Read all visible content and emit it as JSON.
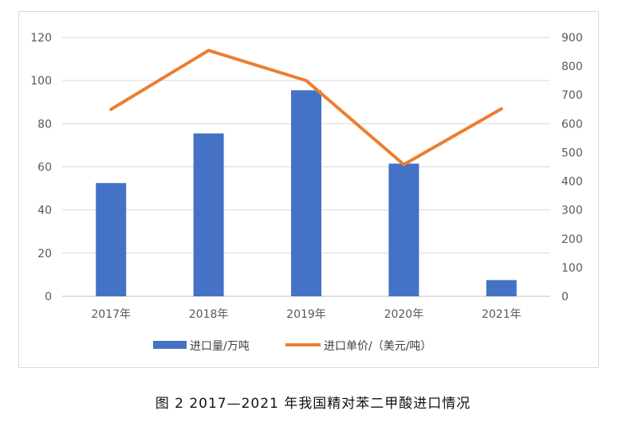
{
  "caption": "图 2  2017—2021 年我国精对苯二甲酸进口情况",
  "chart_data": {
    "type": "bar",
    "categories": [
      "2017年",
      "2018年",
      "2019年",
      "2020年",
      "2021年"
    ],
    "series": [
      {
        "name": "进口量/万吨",
        "type": "bar",
        "axis": "left",
        "color": "#4472C4",
        "values": [
          52.5,
          75.5,
          95.5,
          61.5,
          7.5
        ]
      },
      {
        "name": "进口单价/（美元/吨）",
        "type": "line",
        "axis": "right",
        "color": "#ED7D31",
        "values": [
          650,
          855,
          750,
          458,
          652
        ]
      }
    ],
    "y_left": {
      "min": 0,
      "max": 120,
      "ticks": [
        0,
        20,
        40,
        60,
        80,
        100,
        120
      ]
    },
    "y_right": {
      "min": 0,
      "max": 900,
      "ticks": [
        0,
        100,
        200,
        300,
        400,
        500,
        600,
        700,
        800,
        900
      ]
    },
    "grid": true,
    "legend_position": "bottom"
  }
}
